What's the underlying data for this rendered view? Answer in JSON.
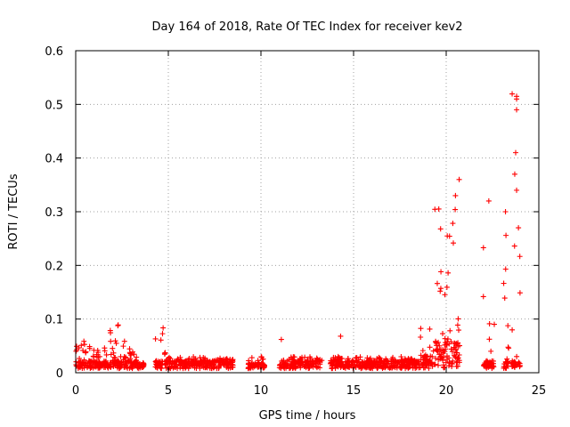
{
  "chart_data": {
    "type": "scatter",
    "title": "Day 164 of 2018, Rate Of TEC Index for receiver kev2",
    "xlabel": "GPS time / hours",
    "ylabel": "ROTI / TECUs",
    "xlim": [
      0,
      25
    ],
    "ylim": [
      0,
      0.6
    ],
    "xticks": [
      0,
      5,
      10,
      15,
      20,
      25
    ],
    "yticks": [
      0,
      0.1,
      0.2,
      0.3,
      0.4,
      0.5,
      0.6
    ],
    "ytick_labels": [
      "0",
      "0.1",
      "0.2",
      "0.3",
      "0.4",
      "0.5",
      "0.6"
    ],
    "grid": true,
    "marker": "+",
    "series_color": "#ff0000",
    "clusters": [
      {
        "x0": 0.0,
        "x1": 0.5,
        "base": 0.02,
        "top": 0.07
      },
      {
        "x0": 0.5,
        "x1": 1.3,
        "base": 0.02,
        "top": 0.05
      },
      {
        "x0": 1.3,
        "x1": 2.3,
        "base": 0.02,
        "top": 0.09
      },
      {
        "x0": 2.3,
        "x1": 3.3,
        "base": 0.02,
        "top": 0.06
      },
      {
        "x0": 3.3,
        "x1": 3.7,
        "base": 0.015,
        "top": 0.02
      },
      {
        "x0": 4.3,
        "x1": 4.9,
        "base": 0.02,
        "top": 0.085
      },
      {
        "x0": 4.9,
        "x1": 8.5,
        "base": 0.02,
        "top": 0.03
      },
      {
        "x0": 9.3,
        "x1": 10.2,
        "base": 0.015,
        "top": 0.03
      },
      {
        "x0": 11.0,
        "x1": 11.6,
        "base": 0.015,
        "top": 0.025
      },
      {
        "x0": 11.6,
        "x1": 13.3,
        "base": 0.02,
        "top": 0.03
      },
      {
        "x0": 13.7,
        "x1": 18.6,
        "base": 0.02,
        "top": 0.03
      },
      {
        "x0": 18.6,
        "x1": 19.3,
        "base": 0.03,
        "top": 0.09
      },
      {
        "x0": 19.3,
        "x1": 20.0,
        "base": 0.05,
        "top": 0.31
      },
      {
        "x0": 20.0,
        "x1": 20.8,
        "base": 0.05,
        "top": 0.36
      },
      {
        "x0": 22.0,
        "x1": 22.6,
        "base": 0.02,
        "top": 0.32
      },
      {
        "x0": 23.1,
        "x1": 23.4,
        "base": 0.02,
        "top": 0.3
      },
      {
        "x0": 23.5,
        "x1": 24.0,
        "base": 0.02,
        "top": 0.52
      }
    ],
    "outliers": [
      {
        "x": 11.1,
        "y": 0.062
      },
      {
        "x": 14.3,
        "y": 0.068
      },
      {
        "x": 23.8,
        "y": 0.515
      },
      {
        "x": 23.8,
        "y": 0.51
      },
      {
        "x": 23.8,
        "y": 0.49
      },
      {
        "x": 23.75,
        "y": 0.41
      },
      {
        "x": 23.7,
        "y": 0.37
      },
      {
        "x": 23.8,
        "y": 0.34
      },
      {
        "x": 23.9,
        "y": 0.27
      },
      {
        "x": 20.7,
        "y": 0.36
      },
      {
        "x": 20.5,
        "y": 0.33
      },
      {
        "x": 22.3,
        "y": 0.32
      },
      {
        "x": 23.2,
        "y": 0.3
      },
      {
        "x": 19.6,
        "y": 0.305
      }
    ]
  }
}
